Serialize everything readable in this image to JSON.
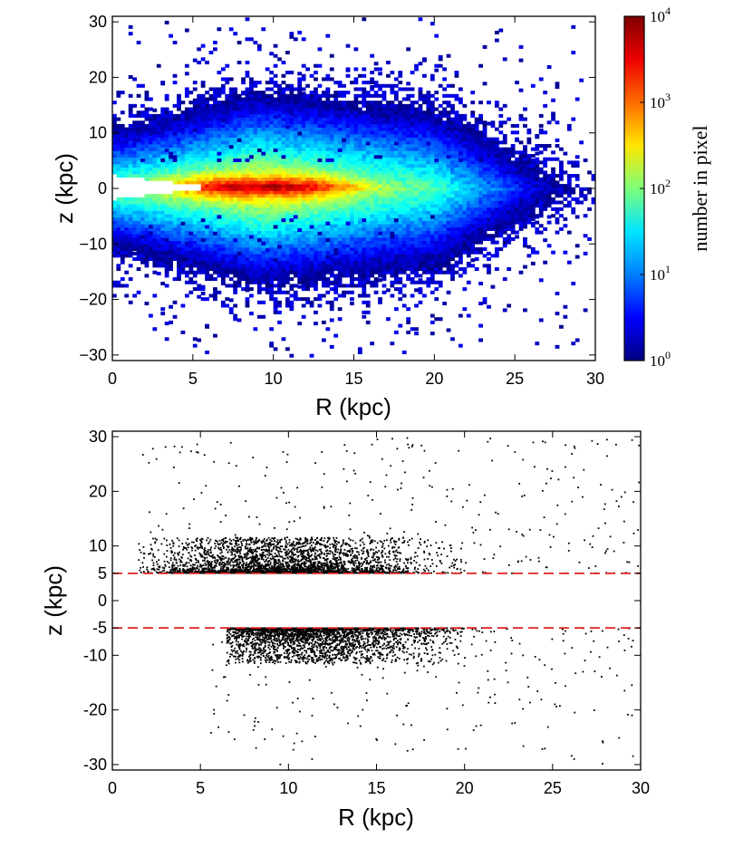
{
  "chart_data": [
    {
      "type": "heatmap",
      "title": "",
      "xlabel": "R (kpc)",
      "ylabel": "z (kpc)",
      "xlim": [
        0,
        30
      ],
      "ylim": [
        -31,
        31
      ],
      "xticks": [
        0,
        5,
        10,
        15,
        20,
        25,
        30
      ],
      "xtick_labels": [
        "0",
        "5",
        "10",
        "15",
        "20",
        "25",
        "30"
      ],
      "yticks": [
        30,
        20,
        10,
        0,
        -10,
        -20,
        -30
      ],
      "ytick_labels": [
        "30",
        "20",
        "10",
        "0",
        "−10",
        "−20",
        "−30"
      ],
      "colorbar": {
        "label": "number in pixel",
        "scale": "log",
        "range": [
          1,
          10000
        ],
        "ticks": [
          {
            "base": "10",
            "exp": "4"
          },
          {
            "base": "10",
            "exp": "3"
          },
          {
            "base": "10",
            "exp": "2"
          },
          {
            "base": "10",
            "exp": "1"
          },
          {
            "base": "10",
            "exp": "0"
          }
        ],
        "colors": [
          "#00007f",
          "#0000ff",
          "#0080ff",
          "#00e5ff",
          "#7dff7a",
          "#ffe600",
          "#ff6c00",
          "#ee0000",
          "#7f0000"
        ]
      },
      "density_model": {
        "peak_R": 8.5,
        "peak_z": 0.3,
        "peak_count": 9000,
        "dense_R_range": [
          6.5,
          13
        ],
        "empty_wedge_R": [
          0,
          6.5
        ],
        "sparse_outskirts_max_R": 30,
        "sparse_outskirts_max_abs_z": 30
      }
    },
    {
      "type": "scatter",
      "title": "",
      "xlabel": "R (kpc)",
      "ylabel": "z (kpc)",
      "xlim": [
        0,
        30
      ],
      "ylim": [
        -31,
        31
      ],
      "xticks": [
        0,
        5,
        10,
        15,
        20,
        25,
        30
      ],
      "xtick_labels": [
        "0",
        "5",
        "10",
        "15",
        "20",
        "25",
        "30"
      ],
      "yticks": [
        30,
        20,
        10,
        5,
        0,
        -5,
        -10,
        -20,
        -30
      ],
      "ytick_labels": [
        "30",
        "20",
        "10",
        "5",
        "0",
        "-5",
        "-10",
        "-20",
        "-30"
      ],
      "cut_lines": [
        {
          "z": 5,
          "style": "dashed",
          "color": "#e02020"
        },
        {
          "z": -5,
          "style": "dashed",
          "color": "#e02020"
        }
      ],
      "point_color": "#000000",
      "excluded_band": [
        -5,
        5
      ],
      "density_model": {
        "upper_dense_R_range": [
          1.5,
          20
        ],
        "lower_dense_R_range": [
          6.5,
          20
        ],
        "sparse_outskirts_max_R": 30,
        "sparse_outskirts_max_abs_z": 30
      }
    }
  ]
}
